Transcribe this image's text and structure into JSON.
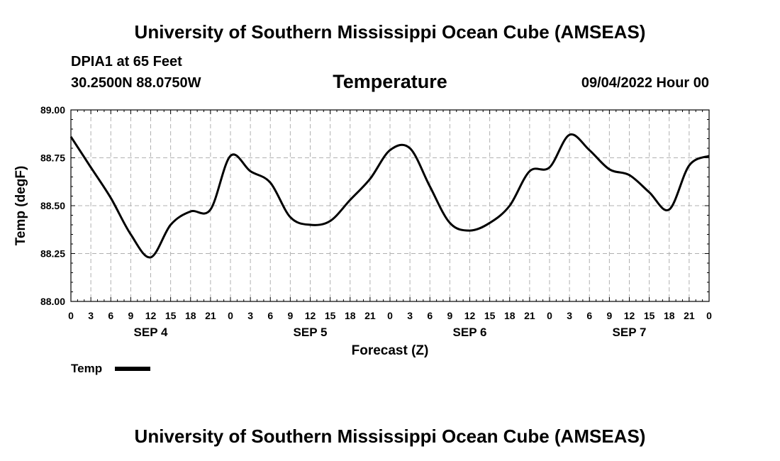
{
  "header": {
    "title": "University of Southern Mississippi Ocean Cube (AMSEAS)",
    "station": "DPIA1 at 65 Feet",
    "coordinates": "30.2500N  88.0750W",
    "variable": "Temperature",
    "datetime": "09/04/2022 Hour 00"
  },
  "footer": {
    "title": "University of Southern Mississippi Ocean Cube (AMSEAS)"
  },
  "legend": {
    "label": "Temp"
  },
  "chart_data": {
    "type": "line",
    "title": "Temperature",
    "xlabel": "Forecast (Z)",
    "ylabel": "Temp (degF)",
    "ylim": [
      88.0,
      89.0
    ],
    "xlim": [
      0,
      96
    ],
    "grid": true,
    "legend_position": "bottom-left",
    "y_ticks": [
      "88.00",
      "88.25",
      "88.50",
      "88.75",
      "89.00"
    ],
    "y_tick_values": [
      88.0,
      88.25,
      88.5,
      88.75,
      89.0
    ],
    "x_tick_labels": [
      "0",
      "3",
      "6",
      "9",
      "12",
      "15",
      "18",
      "21",
      "0",
      "3",
      "6",
      "9",
      "12",
      "15",
      "18",
      "21",
      "0",
      "3",
      "6",
      "9",
      "12",
      "15",
      "18",
      "21",
      "0",
      "3",
      "6",
      "9",
      "12",
      "15",
      "18",
      "21",
      "0"
    ],
    "day_labels": [
      {
        "label": "SEP 4",
        "hour": 12
      },
      {
        "label": "SEP 5",
        "hour": 36
      },
      {
        "label": "SEP 6",
        "hour": 60
      },
      {
        "label": "SEP 7",
        "hour": 84
      }
    ],
    "series": [
      {
        "name": "Temp",
        "x": [
          0,
          3,
          6,
          9,
          12,
          15,
          18,
          21,
          24,
          27,
          30,
          33,
          36,
          39,
          42,
          45,
          48,
          51,
          54,
          57,
          60,
          63,
          66,
          69,
          72,
          75,
          78,
          81,
          84,
          87,
          90,
          93,
          96
        ],
        "values": [
          88.86,
          88.7,
          88.54,
          88.35,
          88.23,
          88.4,
          88.47,
          88.48,
          88.76,
          88.68,
          88.62,
          88.44,
          88.4,
          88.42,
          88.53,
          88.64,
          88.79,
          88.8,
          88.6,
          88.41,
          88.37,
          88.41,
          88.5,
          88.68,
          88.7,
          88.87,
          88.79,
          88.69,
          88.66,
          88.57,
          88.48,
          88.71,
          88.76
        ]
      }
    ]
  }
}
